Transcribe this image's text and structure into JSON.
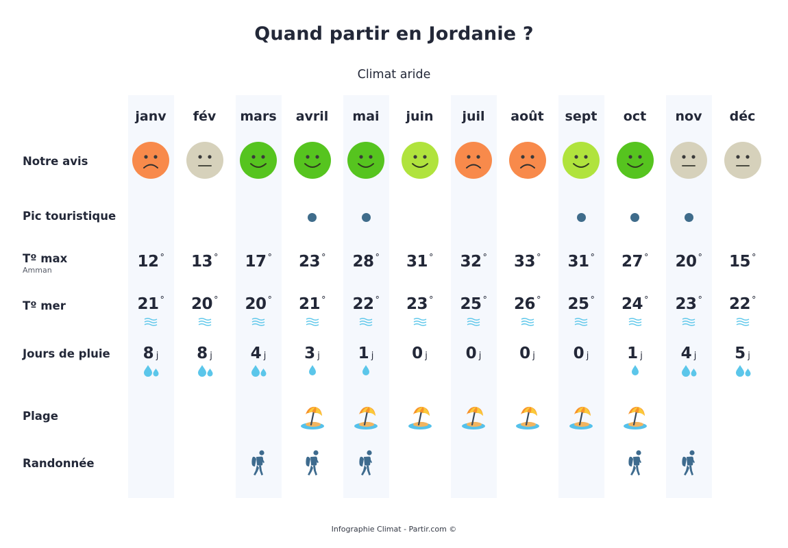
{
  "header": {
    "title": "Quand partir en Jordanie ?",
    "subtitle": "Climat aride"
  },
  "row_labels": {
    "avis": "Notre avis",
    "pic": "Pic touristique",
    "tmax": "Tº max",
    "tmax_sub": "Amman",
    "tmer": "Tº mer",
    "pluie": "Jours de pluie",
    "plage": "Plage",
    "rando": "Randonnée"
  },
  "units": {
    "degree": "°",
    "day": "j"
  },
  "colors": {
    "face_bad": "#f88a4b",
    "face_neutral": "#d6d1bb",
    "face_good": "#56c41f",
    "face_ok": "#b0e33d",
    "peak_dot": "#3f6c8b",
    "water_blue": "#5bc6ea",
    "column_shade": "#f5f8fd",
    "text_dark": "#232838"
  },
  "months": [
    {
      "label": "janv",
      "avis": "bad",
      "peak": false,
      "tmax": "12",
      "tmer": "21",
      "rain": "8",
      "drops": 2,
      "plage": false,
      "rando": false
    },
    {
      "label": "fév",
      "avis": "neutral",
      "peak": false,
      "tmax": "13",
      "tmer": "20",
      "rain": "8",
      "drops": 2,
      "plage": false,
      "rando": false
    },
    {
      "label": "mars",
      "avis": "good",
      "peak": false,
      "tmax": "17",
      "tmer": "20",
      "rain": "4",
      "drops": 2,
      "plage": false,
      "rando": true
    },
    {
      "label": "avril",
      "avis": "good",
      "peak": true,
      "tmax": "23",
      "tmer": "21",
      "rain": "3",
      "drops": 1,
      "plage": true,
      "rando": true
    },
    {
      "label": "mai",
      "avis": "good",
      "peak": true,
      "tmax": "28",
      "tmer": "22",
      "rain": "1",
      "drops": 1,
      "plage": true,
      "rando": true
    },
    {
      "label": "juin",
      "avis": "ok",
      "peak": false,
      "tmax": "31",
      "tmer": "23",
      "rain": "0",
      "drops": 0,
      "plage": true,
      "rando": false
    },
    {
      "label": "juil",
      "avis": "bad",
      "peak": false,
      "tmax": "32",
      "tmer": "25",
      "rain": "0",
      "drops": 0,
      "plage": true,
      "rando": false
    },
    {
      "label": "août",
      "avis": "bad",
      "peak": false,
      "tmax": "33",
      "tmer": "26",
      "rain": "0",
      "drops": 0,
      "plage": true,
      "rando": false
    },
    {
      "label": "sept",
      "avis": "ok",
      "peak": true,
      "tmax": "31",
      "tmer": "25",
      "rain": "0",
      "drops": 0,
      "plage": true,
      "rando": false
    },
    {
      "label": "oct",
      "avis": "good",
      "peak": true,
      "tmax": "27",
      "tmer": "24",
      "rain": "1",
      "drops": 1,
      "plage": true,
      "rando": true
    },
    {
      "label": "nov",
      "avis": "neutral",
      "peak": true,
      "tmax": "20",
      "tmer": "23",
      "rain": "4",
      "drops": 2,
      "plage": false,
      "rando": true
    },
    {
      "label": "déc",
      "avis": "neutral",
      "peak": false,
      "tmax": "15",
      "tmer": "22",
      "rain": "5",
      "drops": 2,
      "plage": false,
      "rando": false
    }
  ],
  "chart_data": {
    "type": "table",
    "title": "Quand partir en Jordanie ?",
    "subtitle": "Climat aride",
    "columns": [
      "janv",
      "fév",
      "mars",
      "avril",
      "mai",
      "juin",
      "juil",
      "août",
      "sept",
      "oct",
      "nov",
      "déc"
    ],
    "rows": [
      {
        "name": "Notre avis",
        "values": [
          "bad",
          "neutral",
          "good",
          "good",
          "good",
          "ok",
          "bad",
          "bad",
          "ok",
          "good",
          "neutral",
          "neutral"
        ]
      },
      {
        "name": "Pic touristique",
        "values": [
          false,
          false,
          false,
          true,
          true,
          false,
          false,
          false,
          true,
          true,
          true,
          false
        ]
      },
      {
        "name": "Tº max Amman (°C)",
        "values": [
          12,
          13,
          17,
          23,
          28,
          31,
          32,
          33,
          31,
          27,
          20,
          15
        ]
      },
      {
        "name": "Tº mer (°C)",
        "values": [
          21,
          20,
          20,
          21,
          22,
          23,
          25,
          26,
          25,
          24,
          23,
          22
        ]
      },
      {
        "name": "Jours de pluie (j)",
        "values": [
          8,
          8,
          4,
          3,
          1,
          0,
          0,
          0,
          0,
          1,
          4,
          5
        ]
      },
      {
        "name": "Plage",
        "values": [
          false,
          false,
          false,
          true,
          true,
          true,
          true,
          true,
          true,
          true,
          false,
          false
        ]
      },
      {
        "name": "Randonnée",
        "values": [
          false,
          false,
          true,
          true,
          true,
          false,
          false,
          false,
          false,
          true,
          true,
          false
        ]
      }
    ]
  },
  "footer": {
    "text": "Infographie Climat - Partir.com ©"
  }
}
